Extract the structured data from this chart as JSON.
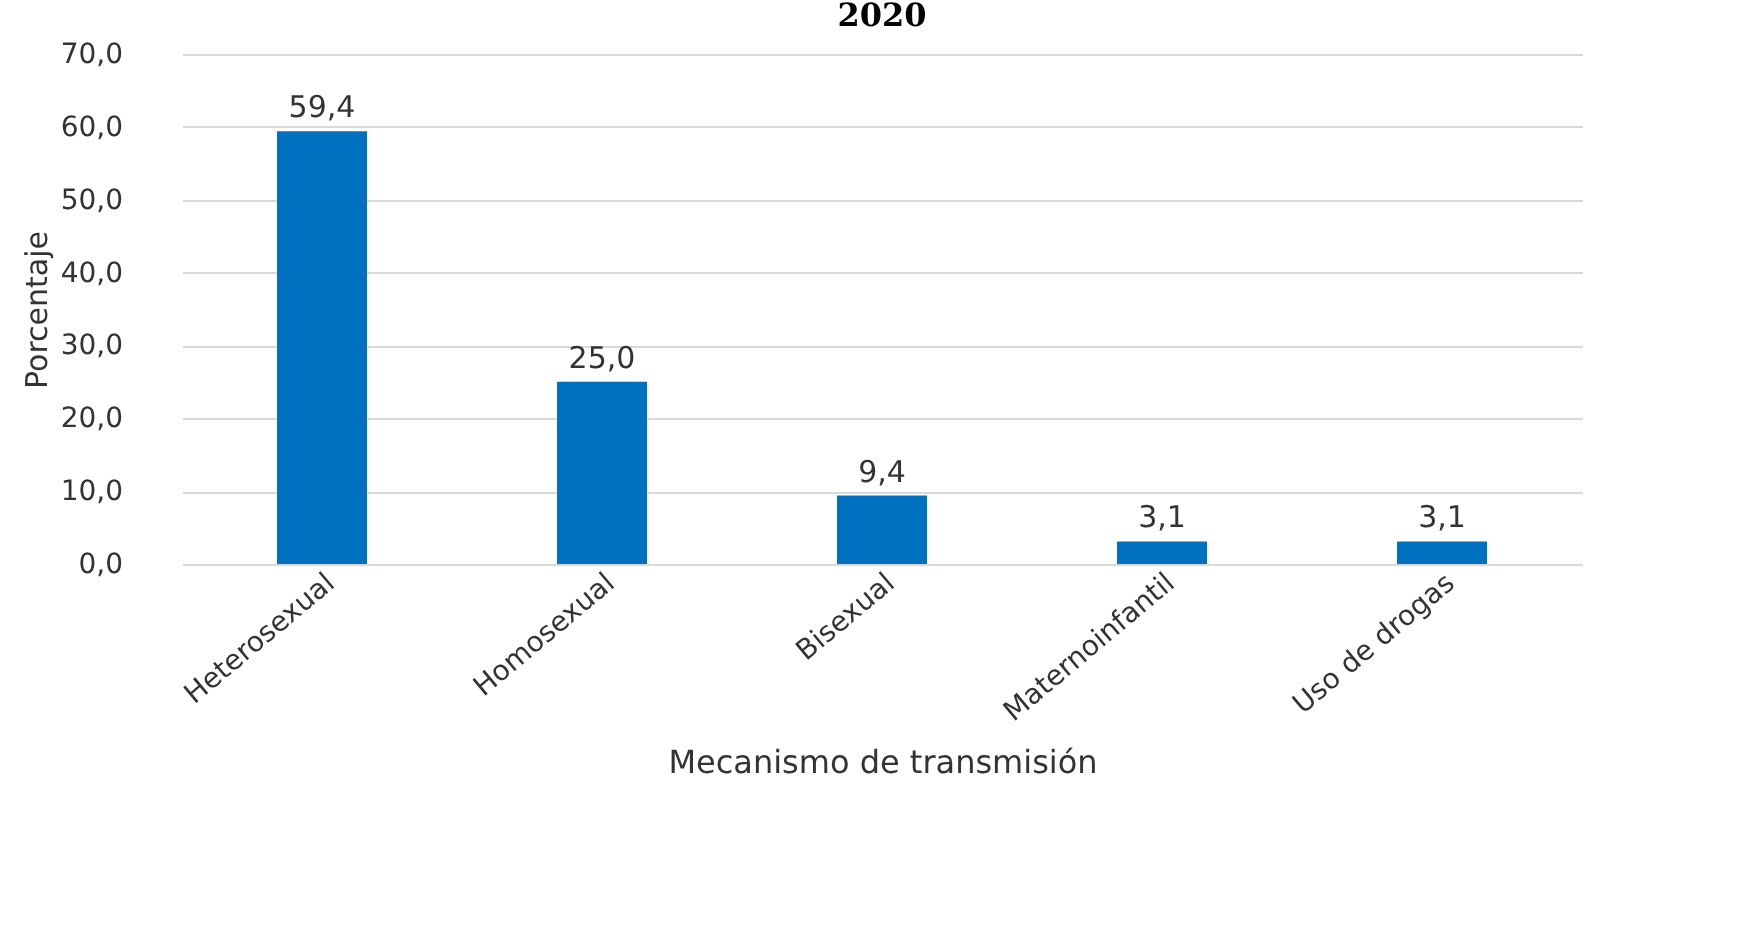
{
  "chart_data": {
    "type": "bar",
    "title": "2020",
    "xlabel": "Mecanismo de transmisión",
    "ylabel": "Porcentaje",
    "categories": [
      "Heterosexual",
      "Homosexual",
      "Bisexual",
      "Maternoinfantil",
      "Uso de drogas"
    ],
    "values": [
      59.4,
      25.0,
      9.4,
      3.1,
      3.1
    ],
    "value_labels": [
      "59,4",
      "25,0",
      "9,4",
      "3,1",
      "3,1"
    ],
    "color": "#0070c0",
    "ylim": [
      0,
      70
    ],
    "yticks": [
      {
        "value": 0,
        "label": "0,0"
      },
      {
        "value": 10,
        "label": "10,0"
      },
      {
        "value": 20,
        "label": "20,0"
      },
      {
        "value": 30,
        "label": "30,0"
      },
      {
        "value": 40,
        "label": "40,0"
      },
      {
        "value": 50,
        "label": "50,0"
      },
      {
        "value": 60,
        "label": "60,0"
      },
      {
        "value": 70,
        "label": "70,0"
      }
    ],
    "grid": "y"
  }
}
